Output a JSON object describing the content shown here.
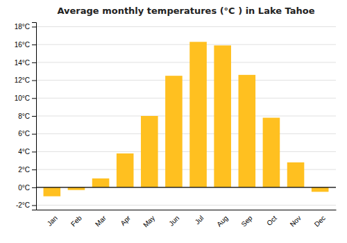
{
  "chart_data": {
    "type": "bar",
    "title": "Average monthly temperatures (°C ) in Lake Tahoe",
    "categories": [
      "Jan",
      "Feb",
      "Mar",
      "Apr",
      "May",
      "Jun",
      "Jul",
      "Aug",
      "Sep",
      "Oct",
      "Nov",
      "Dec"
    ],
    "values": [
      -1.0,
      -0.3,
      1.0,
      3.8,
      8.0,
      12.5,
      16.3,
      15.9,
      12.6,
      7.8,
      2.8,
      -0.5
    ],
    "color": "#FFC020",
    "ylim": [
      -2.5,
      18.5
    ],
    "yticks": [
      {
        "value": -2,
        "label": "-2°C"
      },
      {
        "value": 0,
        "label": "0°C"
      },
      {
        "value": 2,
        "label": "2°C"
      },
      {
        "value": 4,
        "label": "4°C"
      },
      {
        "value": 6,
        "label": "6°C"
      },
      {
        "value": 8,
        "label": "8°C"
      },
      {
        "value": 10,
        "label": "10°C"
      },
      {
        "value": 12,
        "label": "12°C"
      },
      {
        "value": 14,
        "label": "14°C"
      },
      {
        "value": 16,
        "label": "16°C"
      },
      {
        "value": 18,
        "label": "18°C"
      }
    ],
    "grid": true
  }
}
